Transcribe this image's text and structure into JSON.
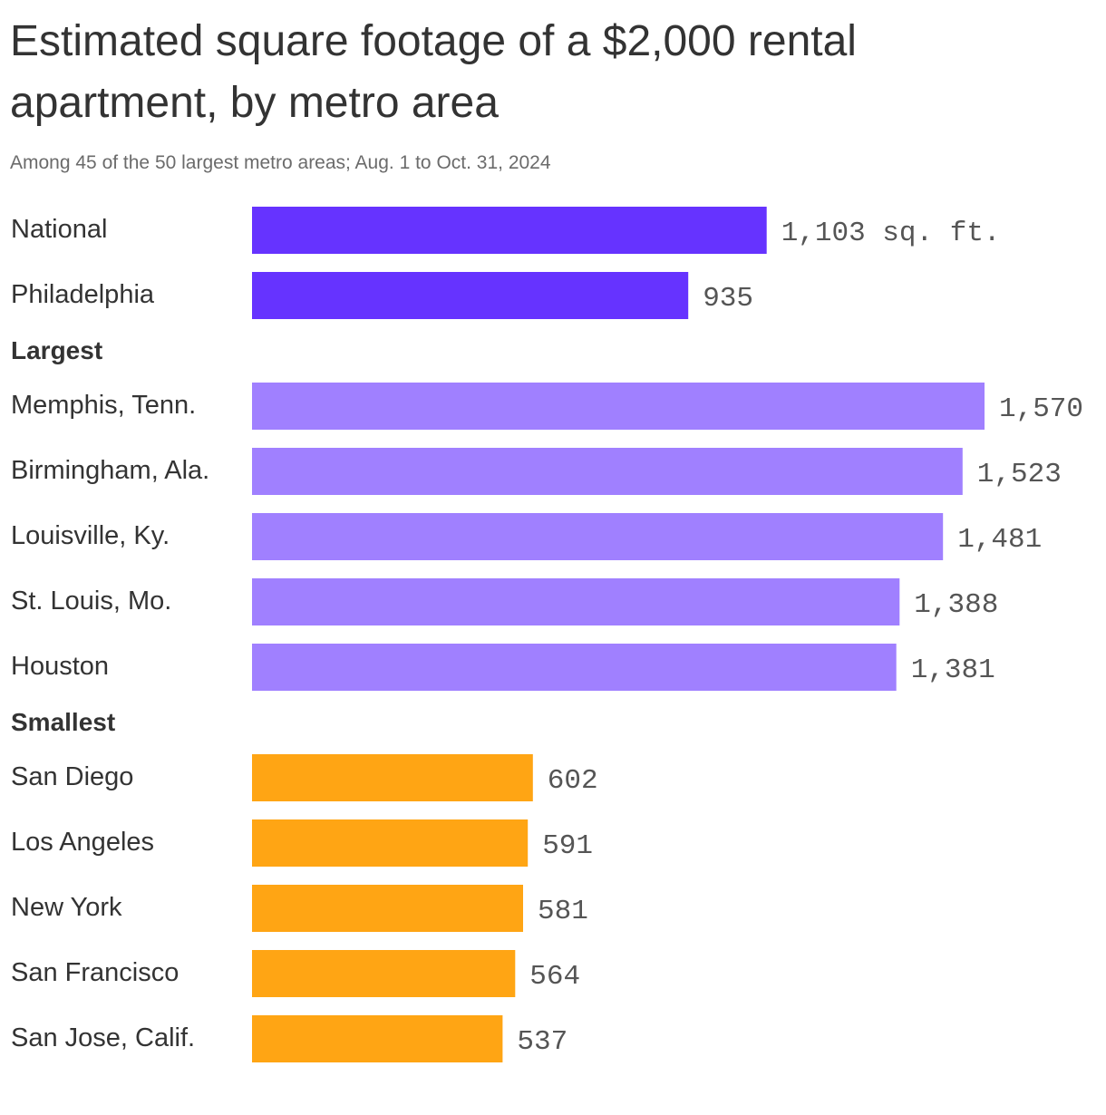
{
  "chart_data": {
    "type": "bar",
    "orientation": "horizontal",
    "title": "Estimated square footage of a $2,000 rental apartment, by metro area",
    "subtitle": "Among 45 of the 50 largest metro areas; Aug. 1 to Oct. 31, 2024",
    "unit_suffix": " sq. ft.",
    "xlim": [
      0,
      1570
    ],
    "grid": false,
    "legend": "none",
    "groups": [
      {
        "heading": "",
        "color": "#6633ff",
        "items": [
          {
            "label": "National",
            "value": 1103,
            "display": "1,103 sq. ft."
          },
          {
            "label": "Philadelphia",
            "value": 935,
            "display": "935"
          }
        ]
      },
      {
        "heading": "Largest",
        "color": "#a080ff",
        "items": [
          {
            "label": "Memphis, Tenn.",
            "value": 1570,
            "display": "1,570"
          },
          {
            "label": "Birmingham, Ala.",
            "value": 1523,
            "display": "1,523"
          },
          {
            "label": "Louisville, Ky.",
            "value": 1481,
            "display": "1,481"
          },
          {
            "label": "St. Louis, Mo.",
            "value": 1388,
            "display": "1,388"
          },
          {
            "label": "Houston",
            "value": 1381,
            "display": "1,381"
          }
        ]
      },
      {
        "heading": "Smallest",
        "color": "#ffa514",
        "items": [
          {
            "label": "San Diego",
            "value": 602,
            "display": "602"
          },
          {
            "label": "Los Angeles",
            "value": 591,
            "display": "591"
          },
          {
            "label": "New York",
            "value": 581,
            "display": "581"
          },
          {
            "label": "San Francisco",
            "value": 564,
            "display": "564"
          },
          {
            "label": "San Jose, Calif.",
            "value": 537,
            "display": "537"
          }
        ]
      }
    ]
  }
}
